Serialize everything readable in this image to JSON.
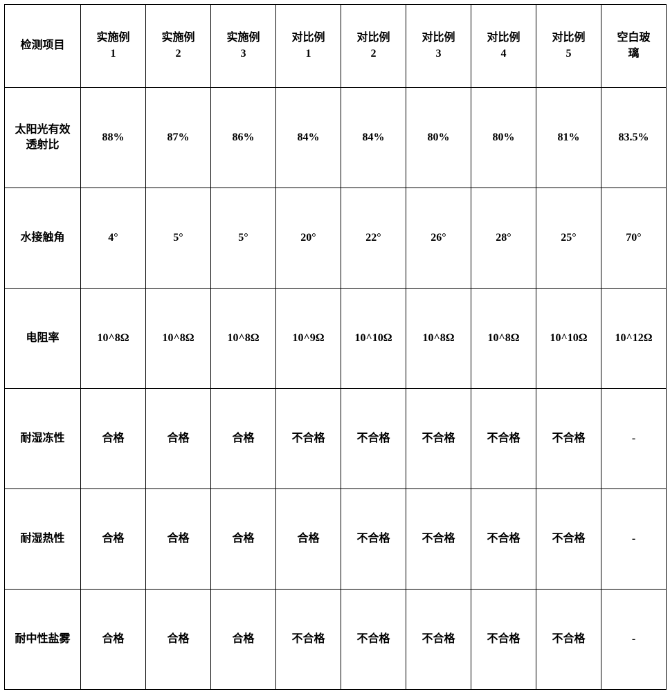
{
  "table": {
    "columns": [
      "检测项目",
      "实施例1",
      "实施例2",
      "实施例3",
      "对比例1",
      "对比例2",
      "对比例3",
      "对比例4",
      "对比例5",
      "空白玻璃"
    ],
    "column_display": [
      "检测项目",
      "实施例\n1",
      "实施例\n2",
      "实施例\n3",
      "对比例\n1",
      "对比例\n2",
      "对比例\n3",
      "对比例\n4",
      "对比例\n5",
      "空白玻\n璃"
    ],
    "rows": [
      [
        "太阳光有效透射比",
        "88%",
        "87%",
        "86%",
        "84%",
        "84%",
        "80%",
        "80%",
        "81%",
        "83.5%"
      ],
      [
        "水接触角",
        "4°",
        "5°",
        "5°",
        "20°",
        "22°",
        "26°",
        "28°",
        "25°",
        "70°"
      ],
      [
        "电阻率",
        "10^8Ω",
        "10^8Ω",
        "10^8Ω",
        "10^9Ω",
        "10^10Ω",
        "10^8Ω",
        "10^8Ω",
        "10^10Ω",
        "10^12Ω"
      ],
      [
        "耐湿冻性",
        "合格",
        "合格",
        "合格",
        "不合格",
        "不合格",
        "不合格",
        "不合格",
        "不合格",
        "-"
      ],
      [
        "耐湿热性",
        "合格",
        "合格",
        "合格",
        "合格",
        "不合格",
        "不合格",
        "不合格",
        "不合格",
        "-"
      ],
      [
        "耐中性盐雾",
        "合格",
        "合格",
        "合格",
        "不合格",
        "不合格",
        "不合格",
        "不合格",
        "不合格",
        "-"
      ]
    ],
    "row_display_first": [
      "太阳光有效\n透射比",
      "水接触角",
      "电阻率",
      "耐湿冻性",
      "耐湿热性",
      "耐中性盐雾"
    ],
    "styling": {
      "border_color": "#000000",
      "border_width": 1.5,
      "background_color": "#ffffff",
      "text_color": "#000000",
      "font_size": 16,
      "font_weight": "bold",
      "font_family": "SimSun",
      "header_row_height": 120,
      "data_row_height": 145,
      "first_col_width": 110,
      "data_col_width": 94,
      "text_align": "center",
      "vertical_align": "middle"
    }
  }
}
